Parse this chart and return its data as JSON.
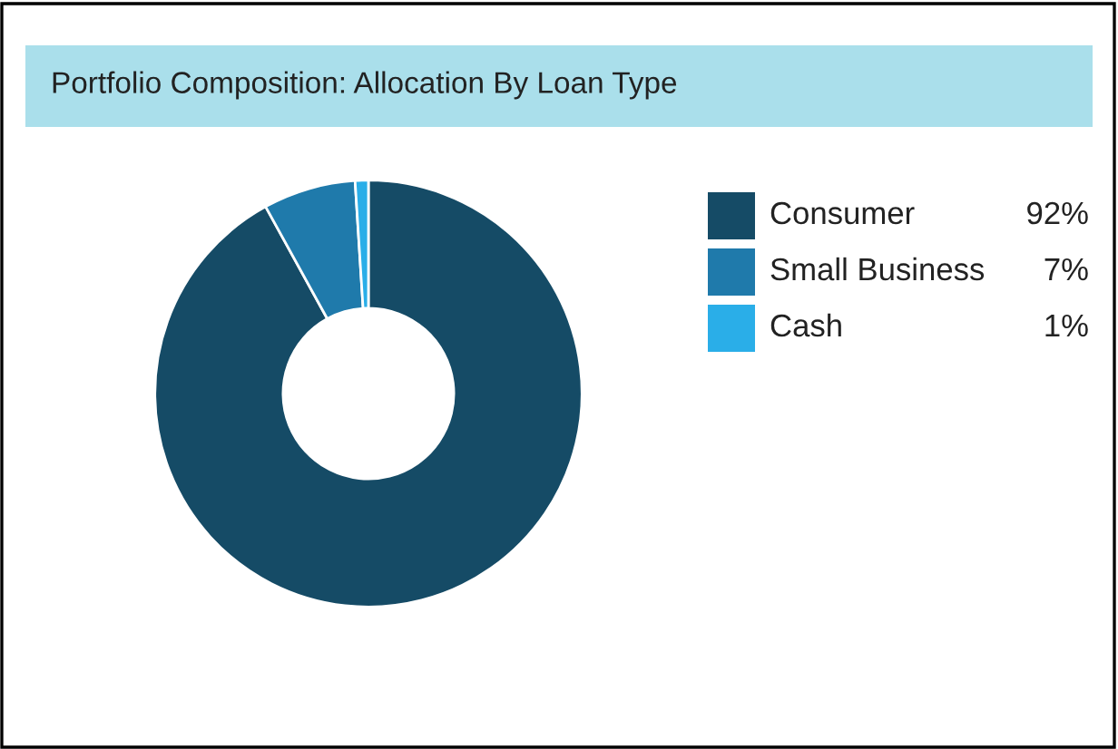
{
  "chart_data": {
    "type": "donut",
    "title": "Portfolio Composition: Allocation By Loan Type",
    "categories": [
      "Consumer",
      "Small Business",
      "Cash"
    ],
    "values": [
      92,
      7,
      1
    ],
    "colors": [
      "#154b66",
      "#1f7aab",
      "#2aaee8"
    ],
    "value_labels": [
      "92%",
      "7%",
      "1%"
    ],
    "legend": "right"
  }
}
